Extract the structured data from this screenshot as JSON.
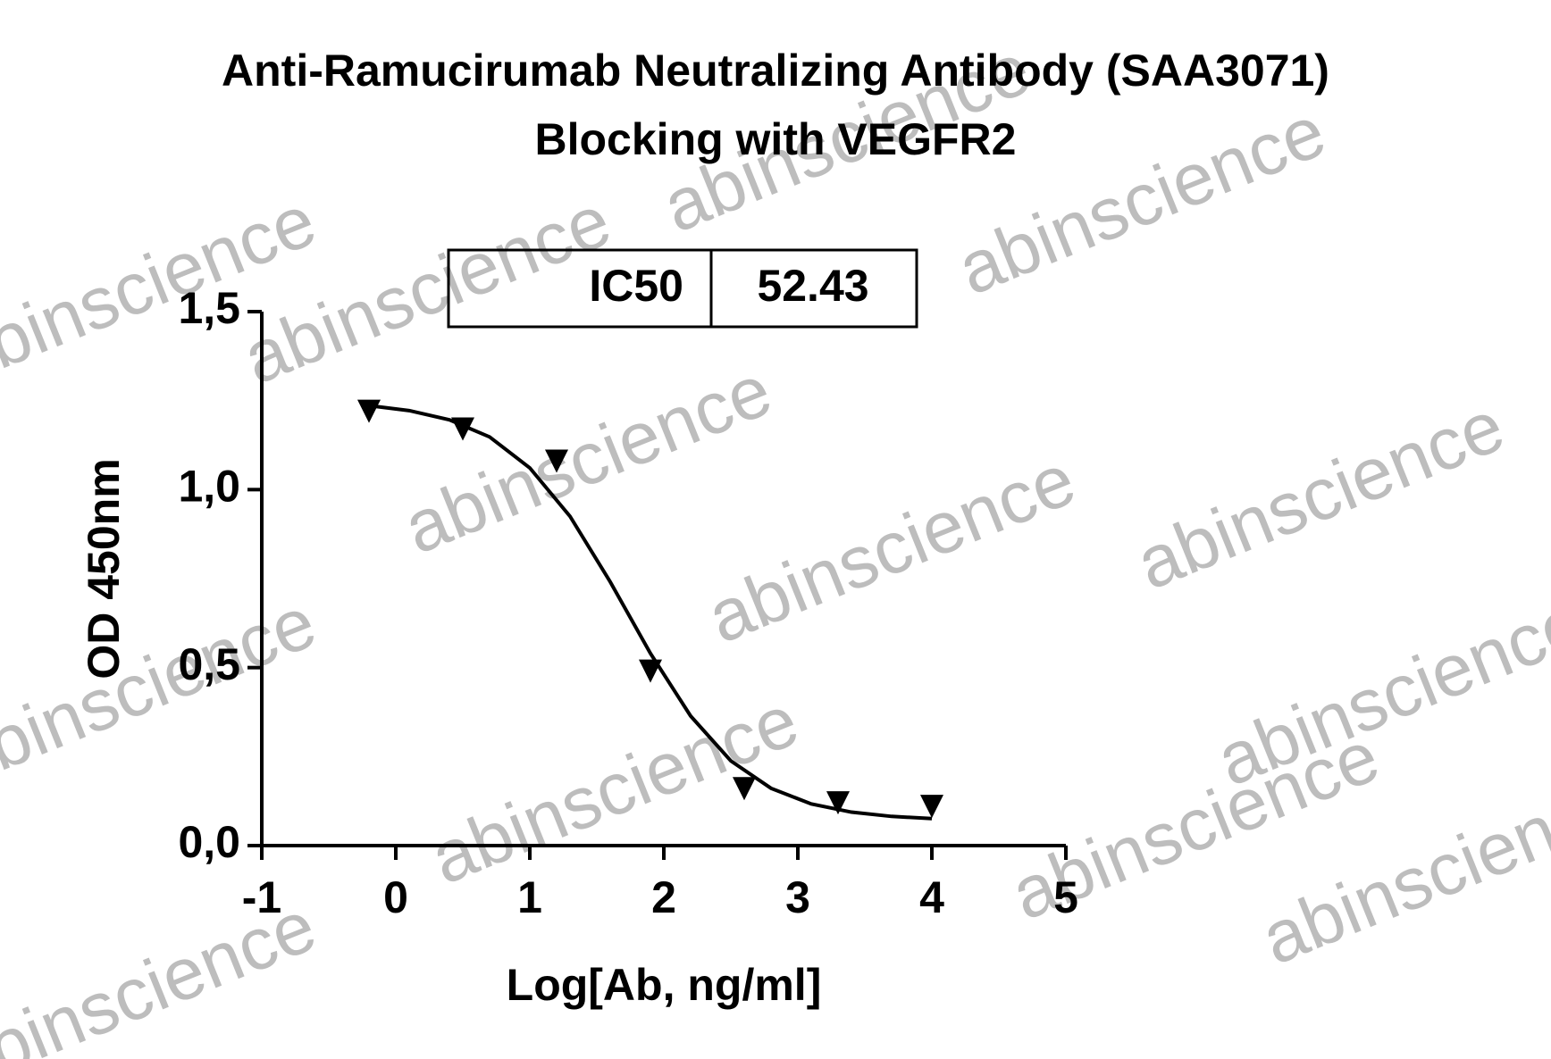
{
  "chart_data": {
    "type": "scatter",
    "title": [
      "Anti-Ramucirumab Neutralizing Antibody (SAA3071)",
      "Blocking with VEGFR2"
    ],
    "x_label": "Log[Ab, ng/ml]",
    "y_label": "OD 450nm",
    "x": [
      -0.2,
      0.5,
      1.2,
      1.9,
      2.6,
      3.3,
      4.0
    ],
    "values": [
      1.22,
      1.17,
      1.08,
      0.49,
      0.16,
      0.12,
      0.11
    ],
    "color": "#000000",
    "fit": {
      "x": [
        -0.2,
        0.1,
        0.4,
        0.7,
        1.0,
        1.3,
        1.6,
        1.9,
        2.2,
        2.5,
        2.8,
        3.1,
        3.4,
        3.7,
        4.0
      ],
      "values": [
        1.236,
        1.222,
        1.196,
        1.148,
        1.061,
        0.925,
        0.741,
        0.54,
        0.364,
        0.238,
        0.161,
        0.117,
        0.094,
        0.082,
        0.076
      ]
    },
    "xlim": [
      -1,
      5
    ],
    "xticks": [
      -1,
      0,
      1,
      2,
      3,
      4,
      5
    ],
    "ylim": [
      0,
      1.5
    ],
    "yticks": [
      {
        "value": 0,
        "label": "0,0"
      },
      {
        "value": 0.5,
        "label": "0,5"
      },
      {
        "value": 1.0,
        "label": "1,0"
      },
      {
        "value": 1.5,
        "label": "1,5"
      }
    ],
    "annotation": {
      "label": "IC50",
      "value": 52.43
    },
    "watermark": "abinscience"
  }
}
